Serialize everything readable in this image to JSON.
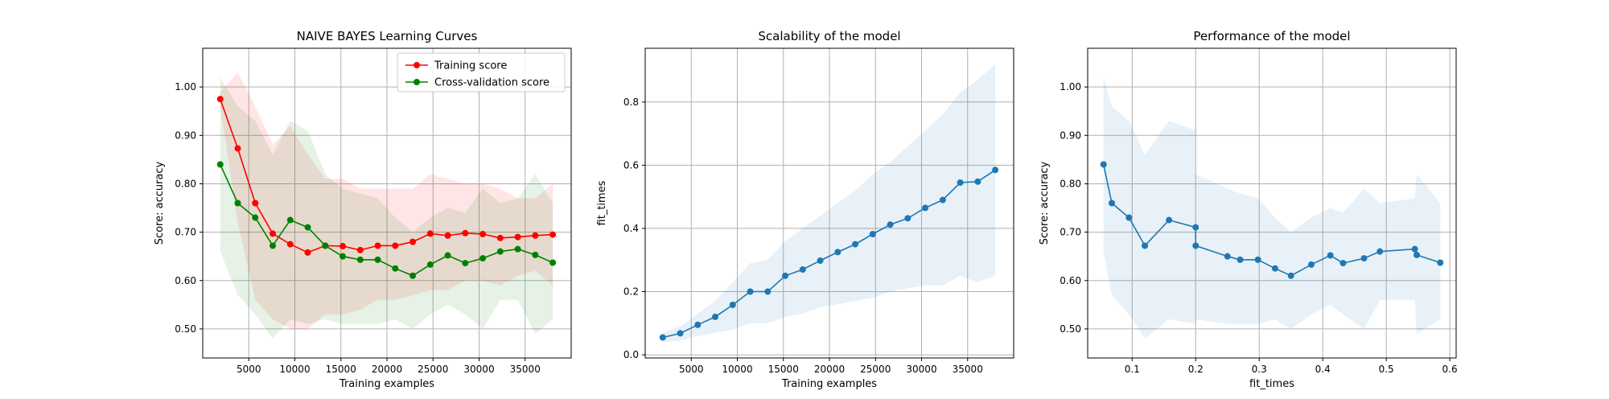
{
  "chart_data": [
    {
      "type": "line",
      "title": "NAIVE BAYES Learning Curves",
      "xlabel": "Training examples",
      "ylabel": "Score: accuracy",
      "xlim": [
        0,
        40000
      ],
      "ylim": [
        0.44,
        1.08
      ],
      "xticks": [
        5000,
        10000,
        15000,
        20000,
        25000,
        30000,
        35000
      ],
      "yticks": [
        0.5,
        0.6,
        0.7,
        0.8,
        0.9,
        1.0
      ],
      "grid": true,
      "legend": "top-right",
      "x": [
        1900,
        3800,
        5700,
        7600,
        9500,
        11400,
        13300,
        15200,
        17100,
        19000,
        20900,
        22800,
        24700,
        26600,
        28500,
        30400,
        32300,
        34200,
        36100,
        38000
      ],
      "series": [
        {
          "name": "Training score",
          "color": "#ff0000",
          "values": [
            0.975,
            0.873,
            0.76,
            0.697,
            0.675,
            0.658,
            0.672,
            0.671,
            0.663,
            0.672,
            0.672,
            0.68,
            0.697,
            0.693,
            0.698,
            0.696,
            0.688,
            0.69,
            0.693,
            0.695
          ],
          "band_upper": [
            0.99,
            1.03,
            0.96,
            0.88,
            0.92,
            0.86,
            0.81,
            0.81,
            0.79,
            0.79,
            0.79,
            0.79,
            0.82,
            0.81,
            0.8,
            0.8,
            0.79,
            0.77,
            0.77,
            0.8
          ],
          "band_lower": [
            0.96,
            0.72,
            0.56,
            0.52,
            0.5,
            0.5,
            0.53,
            0.53,
            0.54,
            0.56,
            0.56,
            0.57,
            0.58,
            0.58,
            0.6,
            0.6,
            0.59,
            0.61,
            0.62,
            0.59
          ]
        },
        {
          "name": "Cross-validation score",
          "color": "#008000",
          "values": [
            0.84,
            0.76,
            0.73,
            0.672,
            0.725,
            0.71,
            0.672,
            0.65,
            0.643,
            0.643,
            0.625,
            0.61,
            0.633,
            0.652,
            0.636,
            0.646,
            0.66,
            0.665,
            0.653,
            0.637
          ],
          "band_upper": [
            1.02,
            0.96,
            0.93,
            0.86,
            0.93,
            0.91,
            0.82,
            0.79,
            0.78,
            0.77,
            0.73,
            0.7,
            0.73,
            0.75,
            0.74,
            0.79,
            0.76,
            0.77,
            0.82,
            0.76
          ],
          "band_lower": [
            0.66,
            0.57,
            0.53,
            0.48,
            0.52,
            0.51,
            0.52,
            0.51,
            0.51,
            0.51,
            0.52,
            0.5,
            0.53,
            0.55,
            0.53,
            0.5,
            0.56,
            0.56,
            0.49,
            0.52
          ]
        }
      ]
    },
    {
      "type": "line",
      "title": "Scalability of the model",
      "xlabel": "Training examples",
      "ylabel": "fit_times",
      "xlim": [
        0,
        40000
      ],
      "ylim": [
        -0.01,
        0.97
      ],
      "xticks": [
        5000,
        10000,
        15000,
        20000,
        25000,
        30000,
        35000
      ],
      "yticks": [
        0.0,
        0.2,
        0.4,
        0.6,
        0.8
      ],
      "grid": true,
      "x": [
        1900,
        3800,
        5700,
        7600,
        9500,
        11400,
        13300,
        15200,
        17100,
        19000,
        20900,
        22800,
        24700,
        26600,
        28500,
        30400,
        32300,
        34200,
        36100,
        38000
      ],
      "series": [
        {
          "color": "#1f77b4",
          "values": [
            0.055,
            0.068,
            0.095,
            0.12,
            0.158,
            0.2,
            0.2,
            0.25,
            0.27,
            0.298,
            0.325,
            0.35,
            0.382,
            0.412,
            0.432,
            0.465,
            0.49,
            0.545,
            0.548,
            0.585
          ],
          "band_upper": [
            0.07,
            0.09,
            0.13,
            0.17,
            0.23,
            0.29,
            0.3,
            0.36,
            0.4,
            0.44,
            0.48,
            0.52,
            0.57,
            0.61,
            0.66,
            0.71,
            0.76,
            0.83,
            0.87,
            0.92
          ],
          "band_lower": [
            0.04,
            0.045,
            0.06,
            0.07,
            0.08,
            0.1,
            0.1,
            0.12,
            0.13,
            0.15,
            0.16,
            0.17,
            0.18,
            0.2,
            0.21,
            0.22,
            0.22,
            0.25,
            0.23,
            0.25
          ]
        }
      ]
    },
    {
      "type": "line",
      "title": "Performance of the model",
      "xlabel": "fit_times",
      "ylabel": "Score: accuracy",
      "xlim": [
        0.03,
        0.61
      ],
      "ylim": [
        0.44,
        1.08
      ],
      "xticks": [
        0.1,
        0.2,
        0.3,
        0.4,
        0.5,
        0.6
      ],
      "yticks": [
        0.5,
        0.6,
        0.7,
        0.8,
        0.9,
        1.0
      ],
      "grid": true,
      "series": [
        {
          "color": "#1f77b4",
          "x": [
            0.055,
            0.068,
            0.095,
            0.12,
            0.158,
            0.2,
            0.2,
            0.25,
            0.27,
            0.298,
            0.325,
            0.35,
            0.382,
            0.412,
            0.432,
            0.465,
            0.49,
            0.545,
            0.548,
            0.585
          ],
          "values": [
            0.84,
            0.76,
            0.73,
            0.672,
            0.725,
            0.71,
            0.672,
            0.65,
            0.643,
            0.643,
            0.625,
            0.61,
            0.633,
            0.652,
            0.636,
            0.646,
            0.66,
            0.665,
            0.653,
            0.637
          ],
          "band_upper": [
            1.02,
            0.96,
            0.93,
            0.86,
            0.93,
            0.91,
            0.82,
            0.79,
            0.78,
            0.77,
            0.73,
            0.7,
            0.73,
            0.75,
            0.74,
            0.79,
            0.76,
            0.77,
            0.82,
            0.76
          ],
          "band_lower": [
            0.66,
            0.57,
            0.53,
            0.48,
            0.52,
            0.51,
            0.52,
            0.51,
            0.51,
            0.51,
            0.52,
            0.5,
            0.53,
            0.55,
            0.53,
            0.5,
            0.56,
            0.56,
            0.49,
            0.52
          ]
        }
      ]
    }
  ]
}
